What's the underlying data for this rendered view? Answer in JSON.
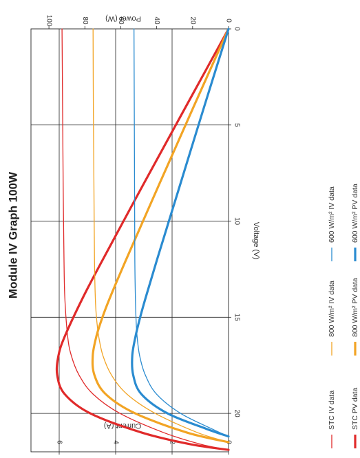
{
  "chart_data": {
    "type": "line",
    "title": "Module IV Graph 100W",
    "xlabel": "Voltage (V)",
    "ylabel": "Current (A)",
    "y2label": "Power (W)",
    "xlim": [
      0,
      22
    ],
    "ylim": [
      0,
      7
    ],
    "y2lim": [
      0,
      110
    ],
    "xticks": [
      "0",
      "5",
      "10",
      "15",
      "20"
    ],
    "yticks": [
      "0",
      "2",
      "4",
      "6"
    ],
    "y2ticks": [
      "0",
      "20",
      "40",
      "60",
      "80",
      "100"
    ],
    "grid": true,
    "legend_position": "bottom",
    "colors": {
      "stc": "#e02a2a",
      "w800": "#f2a424",
      "w600": "#2a8bd0"
    },
    "series": [
      {
        "name": "STC IV data",
        "axis": "current",
        "color": "#e02a2a",
        "weight": "thin",
        "x": [
          0,
          4,
          8,
          12,
          14,
          16,
          17,
          18,
          19,
          20,
          21,
          21.6,
          21.9
        ],
        "y": [
          5.9,
          5.88,
          5.86,
          5.83,
          5.8,
          5.7,
          5.57,
          5.3,
          4.8,
          3.85,
          2.3,
          1.0,
          0
        ]
      },
      {
        "name": "STC PV data",
        "axis": "power",
        "color": "#e02a2a",
        "weight": "thick",
        "x": [
          0,
          4,
          8,
          12,
          14,
          16,
          17,
          18,
          19,
          20,
          21,
          21.6,
          21.9
        ],
        "y": [
          0,
          23.5,
          46.9,
          70.0,
          81.2,
          91.2,
          94.7,
          95.4,
          91.2,
          77.0,
          48.3,
          21.6,
          0
        ]
      },
      {
        "name": "800 W/m² IV data",
        "axis": "current",
        "color": "#f2a424",
        "weight": "thin",
        "x": [
          0,
          4,
          8,
          12,
          14,
          15,
          16,
          17,
          18,
          19,
          20,
          21,
          21.5
        ],
        "y": [
          4.8,
          4.79,
          4.77,
          4.75,
          4.72,
          4.68,
          4.6,
          4.45,
          4.15,
          3.6,
          2.6,
          1.1,
          0
        ]
      },
      {
        "name": "800 W/m² PV data",
        "axis": "power",
        "color": "#f2a424",
        "weight": "thick",
        "x": [
          0,
          4,
          8,
          12,
          14,
          15,
          16,
          17,
          18,
          19,
          20,
          21,
          21.5
        ],
        "y": [
          0,
          19.2,
          38.2,
          57.0,
          66.1,
          70.2,
          73.6,
          75.6,
          74.7,
          68.4,
          52.0,
          23.1,
          0
        ]
      },
      {
        "name": "600 W/m² IV data",
        "axis": "current",
        "color": "#2a8bd0",
        "weight": "thin",
        "x": [
          0,
          4,
          8,
          12,
          14,
          15,
          16,
          17,
          18,
          19,
          20,
          20.8,
          21.2
        ],
        "y": [
          3.35,
          3.34,
          3.33,
          3.32,
          3.3,
          3.28,
          3.24,
          3.15,
          2.95,
          2.55,
          1.7,
          0.6,
          0
        ]
      },
      {
        "name": "600 W/m² PV data",
        "axis": "power",
        "color": "#2a8bd0",
        "weight": "thick",
        "x": [
          0,
          4,
          8,
          12,
          14,
          15,
          16,
          17,
          18,
          19,
          20,
          20.8,
          21.2
        ],
        "y": [
          0,
          13.4,
          26.6,
          39.8,
          46.2,
          49.2,
          51.8,
          53.6,
          53.1,
          48.5,
          34.0,
          12.5,
          0
        ]
      }
    ]
  }
}
